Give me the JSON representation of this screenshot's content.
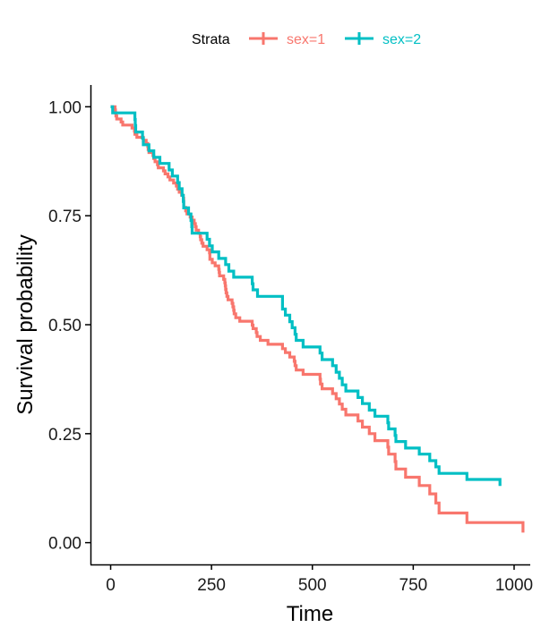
{
  "chart_data": {
    "type": "line",
    "step": true,
    "xlabel": "Time",
    "ylabel": "Survival probability",
    "xlim": [
      -50,
      1040
    ],
    "ylim": [
      -0.05,
      1.05
    ],
    "xticks": [
      0,
      250,
      500,
      750,
      1000
    ],
    "xtick_labels": [
      "0",
      "250",
      "500",
      "750",
      "1000"
    ],
    "yticks": [
      0,
      0.25,
      0.5,
      0.75,
      1.0
    ],
    "ytick_labels": [
      "0.00",
      "0.25",
      "0.50",
      "0.75",
      "1.00"
    ],
    "grid": false,
    "legend": {
      "position": "top",
      "title": "Strata"
    },
    "series": [
      {
        "name": "sex=1",
        "color": "#F8766D",
        "x": [
          0,
          11,
          12,
          13,
          15,
          26,
          30,
          53,
          59,
          60,
          65,
          81,
          88,
          92,
          93,
          95,
          105,
          107,
          110,
          116,
          118,
          131,
          135,
          142,
          147,
          156,
          163,
          166,
          170,
          176,
          180,
          181,
          186,
          189,
          197,
          202,
          207,
          210,
          212,
          218,
          222,
          223,
          226,
          229,
          239,
          245,
          246,
          252,
          259,
          268,
          269,
          270,
          280,
          283,
          284,
          285,
          286,
          288,
          291,
          301,
          303,
          305,
          306,
          310,
          320,
          351,
          353,
          361,
          363,
          371,
          390,
          426,
          433,
          444,
          455,
          457,
          460,
          477,
          519,
          520,
          524,
          550,
          559,
          567,
          574,
          583,
          613,
          624,
          641,
          655,
          687,
          689,
          705,
          707,
          731,
          765,
          791,
          806,
          814,
          883,
          1022
        ],
        "y": [
          1.0,
          0.993,
          0.986,
          0.979,
          0.972,
          0.965,
          0.958,
          0.951,
          0.944,
          0.937,
          0.93,
          0.923,
          0.916,
          0.909,
          0.902,
          0.895,
          0.888,
          0.881,
          0.874,
          0.867,
          0.86,
          0.853,
          0.846,
          0.839,
          0.832,
          0.825,
          0.818,
          0.811,
          0.804,
          0.797,
          0.79,
          0.769,
          0.761,
          0.754,
          0.747,
          0.74,
          0.732,
          0.725,
          0.717,
          0.71,
          0.702,
          0.695,
          0.687,
          0.68,
          0.672,
          0.665,
          0.65,
          0.642,
          0.635,
          0.627,
          0.62,
          0.612,
          0.604,
          0.596,
          0.589,
          0.581,
          0.573,
          0.565,
          0.557,
          0.549,
          0.541,
          0.533,
          0.525,
          0.516,
          0.508,
          0.499,
          0.491,
          0.482,
          0.473,
          0.464,
          0.455,
          0.445,
          0.436,
          0.426,
          0.416,
          0.406,
          0.396,
          0.386,
          0.375,
          0.364,
          0.353,
          0.342,
          0.33,
          0.318,
          0.306,
          0.293,
          0.279,
          0.265,
          0.25,
          0.234,
          0.219,
          0.203,
          0.186,
          0.169,
          0.15,
          0.131,
          0.112,
          0.091,
          0.068,
          0.046,
          0.023
        ],
        "censor_x": [],
        "censor_y": []
      },
      {
        "name": "sex=2",
        "color": "#00BFC4",
        "x": [
          0,
          5,
          60,
          61,
          62,
          79,
          81,
          95,
          107,
          122,
          145,
          153,
          166,
          170,
          177,
          180,
          181,
          193,
          199,
          201,
          202,
          239,
          245,
          252,
          268,
          285,
          293,
          305,
          351,
          353,
          364,
          426,
          426,
          433,
          444,
          450,
          457,
          460,
          477,
          519,
          524,
          550,
          559,
          567,
          574,
          583,
          613,
          624,
          641,
          655,
          687,
          689,
          705,
          707,
          731,
          765,
          791,
          806,
          814,
          883,
          965
        ],
        "y": [
          1.0,
          0.986,
          0.971,
          0.957,
          0.942,
          0.928,
          0.913,
          0.899,
          0.884,
          0.87,
          0.855,
          0.841,
          0.826,
          0.812,
          0.797,
          0.783,
          0.768,
          0.754,
          0.739,
          0.725,
          0.71,
          0.696,
          0.681,
          0.667,
          0.652,
          0.638,
          0.623,
          0.609,
          0.594,
          0.58,
          0.565,
          0.551,
          0.536,
          0.522,
          0.507,
          0.493,
          0.478,
          0.464,
          0.449,
          0.435,
          0.42,
          0.406,
          0.391,
          0.377,
          0.362,
          0.348,
          0.333,
          0.319,
          0.304,
          0.29,
          0.275,
          0.261,
          0.246,
          0.232,
          0.217,
          0.203,
          0.188,
          0.174,
          0.159,
          0.145,
          0.13
        ],
        "censor_x": [],
        "censor_y": []
      }
    ]
  }
}
